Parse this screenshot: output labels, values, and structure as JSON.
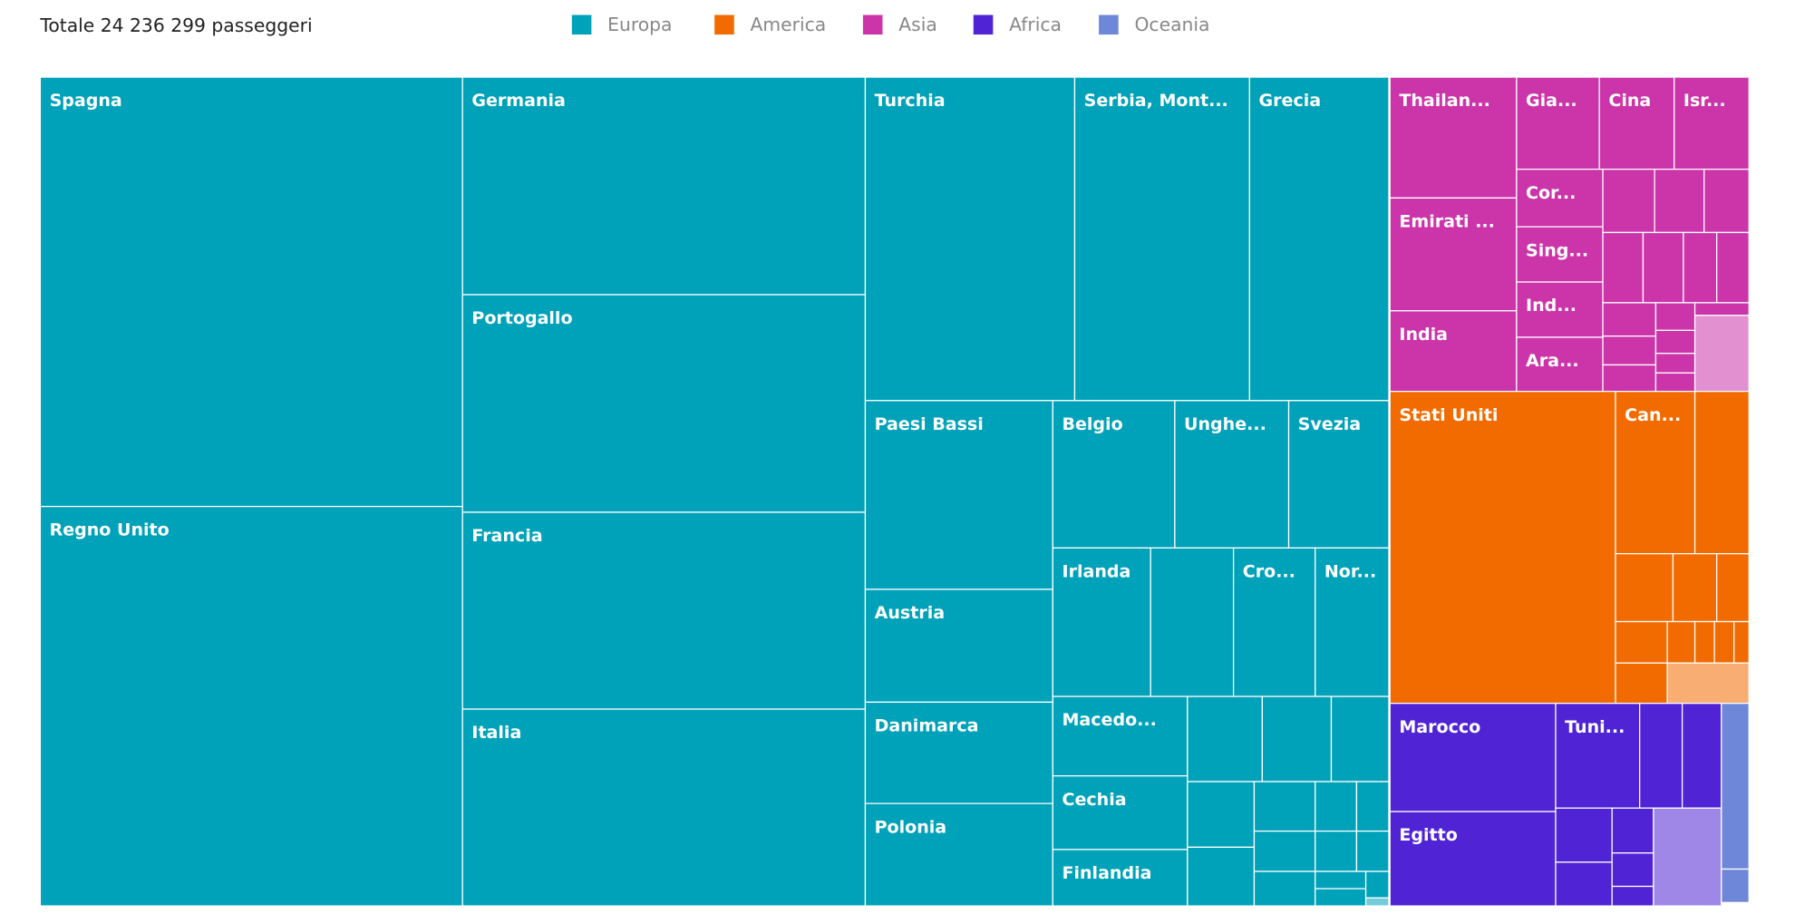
{
  "header": {
    "title": "Totale 24 236 299 passeggeri"
  },
  "legend": [
    {
      "name": "Europa",
      "color": "#00a2b9"
    },
    {
      "name": "America",
      "color": "#f26b00"
    },
    {
      "name": "Asia",
      "color": "#cc35aa"
    },
    {
      "name": "Africa",
      "color": "#5024d4"
    },
    {
      "name": "Oceania",
      "color": "#6f87d8"
    }
  ],
  "tiles": [
    {
      "label": "Spagna"
    },
    {
      "label": "Regno Unito"
    },
    {
      "label": "Germania"
    },
    {
      "label": "Portogallo"
    },
    {
      "label": "Francia"
    },
    {
      "label": "Italia"
    },
    {
      "label": "Turchia"
    },
    {
      "label": "Serbia, Mont..."
    },
    {
      "label": "Grecia"
    },
    {
      "label": "Paesi Bassi"
    },
    {
      "label": "Austria"
    },
    {
      "label": "Danimarca"
    },
    {
      "label": "Polonia"
    },
    {
      "label": "Belgio"
    },
    {
      "label": "Unghe..."
    },
    {
      "label": "Svezia"
    },
    {
      "label": "Irlanda"
    },
    {
      "label": "Cro..."
    },
    {
      "label": "Nor..."
    },
    {
      "label": "Macedo..."
    },
    {
      "label": "Cechia"
    },
    {
      "label": "Finlandia"
    },
    {
      "label": "Thailan..."
    },
    {
      "label": "Emirati ..."
    },
    {
      "label": "India"
    },
    {
      "label": "Gia..."
    },
    {
      "label": "Cina"
    },
    {
      "label": "Isr..."
    },
    {
      "label": "Cor..."
    },
    {
      "label": "Sing..."
    },
    {
      "label": "Ind..."
    },
    {
      "label": "Ara..."
    },
    {
      "label": "Stati Uniti"
    },
    {
      "label": "Can..."
    },
    {
      "label": "Marocco"
    },
    {
      "label": "Egitto"
    },
    {
      "label": "Tuni..."
    }
  ]
}
